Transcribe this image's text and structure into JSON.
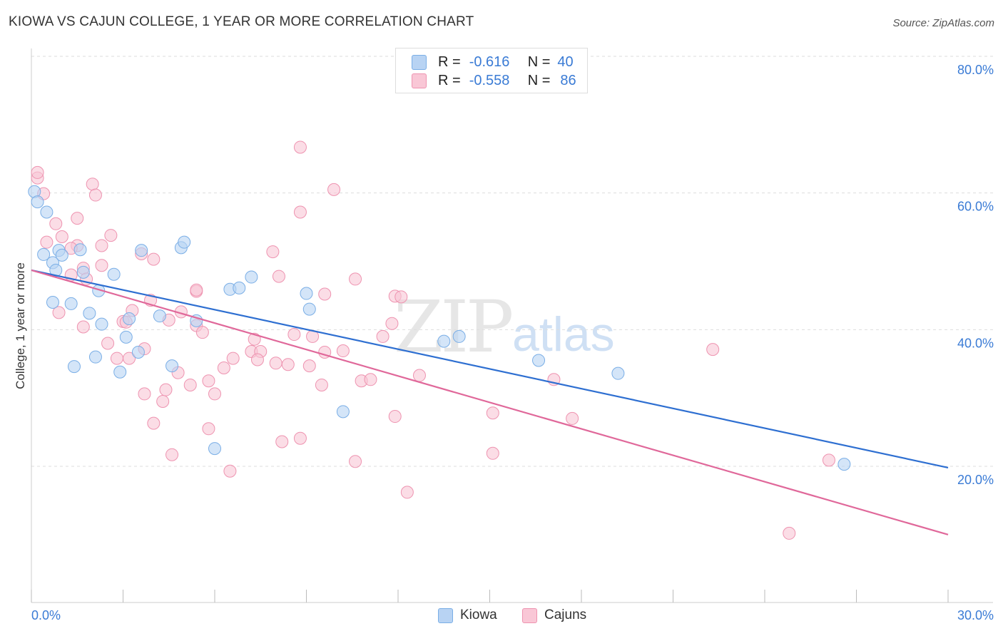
{
  "title": "KIOWA VS CAJUN COLLEGE, 1 YEAR OR MORE CORRELATION CHART",
  "source": "Source: ZipAtlas.com",
  "watermark": {
    "zip": "ZIP",
    "atlas": "atlas"
  },
  "legend": {
    "kiowa": {
      "r_label": "R =",
      "r_value": "-0.616",
      "n_label": "N =",
      "n_value": "40"
    },
    "cajuns": {
      "r_label": "R =",
      "r_value": "-0.558",
      "n_label": "N =",
      "n_value": "86"
    }
  },
  "colors": {
    "kiowa_fill": "#b8d3f3",
    "kiowa_stroke": "#7aaee6",
    "kiowa_line": "#2e6fd1",
    "cajuns_fill": "#f9c7d6",
    "cajuns_stroke": "#ee93b0",
    "cajuns_line": "#e0689a",
    "axis_label": "#3a7bd5",
    "grid": "#dddddd"
  },
  "chart_data": {
    "type": "scatter",
    "ylabel": "College, 1 year or more",
    "xlabel": "",
    "xlim": [
      0,
      30
    ],
    "ylim": [
      0,
      80
    ],
    "x_tick_labels": [
      "0.0%",
      "30.0%"
    ],
    "y_tick_labels": [
      "20.0%",
      "40.0%",
      "60.0%",
      "80.0%"
    ],
    "y_ticks": [
      20,
      40,
      60,
      80
    ],
    "grid": true,
    "legend_position": "bottom-center",
    "series": [
      {
        "name": "Kiowa",
        "trend": [
          [
            0,
            48.7
          ],
          [
            30,
            19.8
          ]
        ],
        "points": [
          [
            0.1,
            60.2
          ],
          [
            0.2,
            58.7
          ],
          [
            0.5,
            57.2
          ],
          [
            0.4,
            51.0
          ],
          [
            0.7,
            49.8
          ],
          [
            0.9,
            51.6
          ],
          [
            1.6,
            51.7
          ],
          [
            0.8,
            48.7
          ],
          [
            1.0,
            50.9
          ],
          [
            1.7,
            48.4
          ],
          [
            2.7,
            48.1
          ],
          [
            0.7,
            44.0
          ],
          [
            1.3,
            43.8
          ],
          [
            2.2,
            45.7
          ],
          [
            1.9,
            42.4
          ],
          [
            2.3,
            40.8
          ],
          [
            3.2,
            41.6
          ],
          [
            3.1,
            38.9
          ],
          [
            3.6,
            51.6
          ],
          [
            4.9,
            52.0
          ],
          [
            5.0,
            52.8
          ],
          [
            4.2,
            42.0
          ],
          [
            5.4,
            41.3
          ],
          [
            6.5,
            45.9
          ],
          [
            6.8,
            46.1
          ],
          [
            7.2,
            47.7
          ],
          [
            9.0,
            45.3
          ],
          [
            9.1,
            43.0
          ],
          [
            2.1,
            36.0
          ],
          [
            1.4,
            34.6
          ],
          [
            2.9,
            33.8
          ],
          [
            3.5,
            36.7
          ],
          [
            4.6,
            34.7
          ],
          [
            10.2,
            28.0
          ],
          [
            13.5,
            38.3
          ],
          [
            14.0,
            39.0
          ],
          [
            16.6,
            35.5
          ],
          [
            19.2,
            33.6
          ],
          [
            6.0,
            22.6
          ],
          [
            26.6,
            20.3
          ]
        ]
      },
      {
        "name": "Cajuns",
        "trend": [
          [
            0,
            48.7
          ],
          [
            30,
            10.0
          ]
        ],
        "points": [
          [
            0.2,
            62.2
          ],
          [
            0.2,
            63.0
          ],
          [
            0.4,
            59.9
          ],
          [
            0.8,
            55.5
          ],
          [
            1.5,
            56.3
          ],
          [
            2.0,
            61.3
          ],
          [
            2.1,
            59.7
          ],
          [
            1.5,
            52.3
          ],
          [
            1.0,
            53.6
          ],
          [
            0.5,
            52.8
          ],
          [
            1.7,
            49.0
          ],
          [
            1.8,
            47.4
          ],
          [
            2.3,
            49.4
          ],
          [
            2.3,
            52.3
          ],
          [
            2.6,
            53.8
          ],
          [
            3.6,
            51.1
          ],
          [
            4.0,
            50.3
          ],
          [
            1.3,
            51.9
          ],
          [
            1.3,
            48.0
          ],
          [
            0.9,
            42.5
          ],
          [
            1.7,
            40.4
          ],
          [
            2.5,
            38.0
          ],
          [
            2.8,
            35.8
          ],
          [
            3.0,
            41.2
          ],
          [
            3.1,
            41.1
          ],
          [
            3.3,
            42.8
          ],
          [
            3.2,
            35.8
          ],
          [
            3.7,
            37.2
          ],
          [
            3.9,
            44.3
          ],
          [
            4.5,
            41.4
          ],
          [
            4.9,
            42.6
          ],
          [
            5.4,
            40.6
          ],
          [
            5.6,
            39.6
          ],
          [
            5.4,
            45.6
          ],
          [
            3.7,
            30.6
          ],
          [
            4.3,
            29.5
          ],
          [
            4.4,
            31.2
          ],
          [
            4.8,
            33.7
          ],
          [
            5.2,
            31.9
          ],
          [
            5.8,
            32.5
          ],
          [
            6.0,
            30.6
          ],
          [
            4.0,
            26.3
          ],
          [
            6.3,
            34.4
          ],
          [
            6.6,
            35.8
          ],
          [
            7.2,
            36.8
          ],
          [
            7.5,
            36.8
          ],
          [
            7.3,
            38.6
          ],
          [
            7.4,
            35.6
          ],
          [
            8.0,
            35.1
          ],
          [
            8.4,
            34.9
          ],
          [
            8.6,
            39.3
          ],
          [
            9.1,
            34.7
          ],
          [
            9.2,
            39.0
          ],
          [
            9.6,
            36.7
          ],
          [
            9.5,
            31.9
          ],
          [
            10.2,
            36.9
          ],
          [
            10.8,
            32.5
          ],
          [
            11.1,
            32.7
          ],
          [
            11.5,
            39.0
          ],
          [
            11.8,
            40.9
          ],
          [
            11.9,
            44.9
          ],
          [
            12.7,
            33.3
          ],
          [
            11.9,
            27.3
          ],
          [
            12.3,
            16.2
          ],
          [
            8.8,
            24.1
          ],
          [
            8.2,
            23.6
          ],
          [
            10.6,
            20.7
          ],
          [
            5.8,
            25.5
          ],
          [
            4.6,
            21.7
          ],
          [
            6.5,
            19.3
          ],
          [
            15.1,
            27.8
          ],
          [
            15.1,
            21.9
          ],
          [
            17.1,
            32.7
          ],
          [
            17.7,
            27.0
          ],
          [
            22.3,
            37.1
          ],
          [
            26.1,
            20.9
          ],
          [
            24.8,
            10.2
          ],
          [
            9.9,
            60.5
          ],
          [
            8.8,
            66.7
          ],
          [
            8.8,
            57.2
          ],
          [
            7.9,
            51.4
          ],
          [
            8.1,
            47.8
          ],
          [
            9.6,
            45.2
          ],
          [
            10.6,
            47.4
          ],
          [
            12.1,
            44.8
          ],
          [
            5.4,
            45.8
          ]
        ]
      }
    ]
  }
}
